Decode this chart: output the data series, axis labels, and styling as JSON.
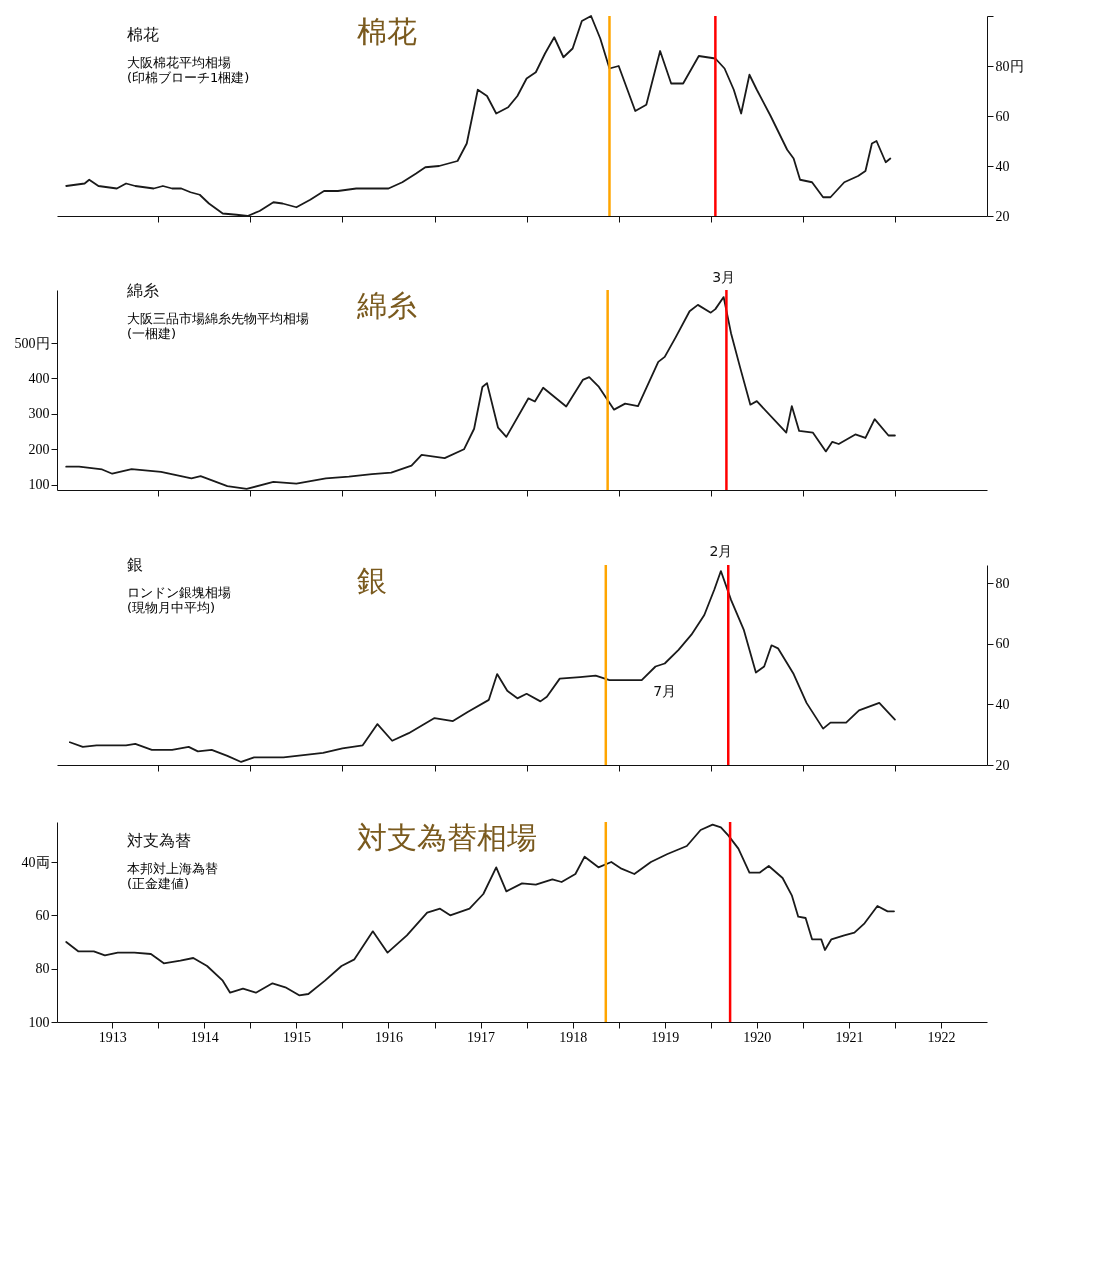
{
  "chart_data": [
    {
      "type": "line",
      "title": "棉花",
      "subtitle": "大阪棉花平均相場\n(印棉ブローチ1梱建)",
      "annotations": [
        "棉花"
      ],
      "xlim": [
        1912.9,
        1923
      ],
      "xticks": [
        {
          "value": 1914,
          "label": null
        },
        {
          "value": 1915,
          "label": null
        },
        {
          "value": 1916,
          "label": null
        },
        {
          "value": 1917,
          "label": null
        },
        {
          "value": 1918,
          "label": null
        },
        {
          "value": 1919,
          "label": null
        },
        {
          "value": 1920,
          "label": null
        },
        {
          "value": 1921,
          "label": null
        },
        {
          "value": 1922,
          "label": null
        }
      ],
      "ylim": [
        20,
        100
      ],
      "yticks": [
        20,
        40,
        60,
        {
          "value": 80,
          "label": "80円"
        },
        {
          "value": 100,
          "label": null
        }
      ],
      "tick_labels": "y",
      "grid": false,
      "marker": "none",
      "line_style": "solid",
      "ref_lines": [
        {
          "axis": "x",
          "value": 1918.9,
          "color": "#ffa500"
        },
        {
          "axis": "x",
          "value": 1920.05,
          "color": "#ff0000"
        }
      ],
      "series": [
        {
          "color": "#1a1a1a",
          "x": [
            1913.0,
            1913.2,
            1913.25,
            1913.35,
            1913.55,
            1913.65,
            1913.75,
            1913.95,
            1914.05,
            1914.15,
            1914.25,
            1914.35,
            1914.45,
            1914.55,
            1914.7,
            1914.85,
            1914.97,
            1915.1,
            1915.25,
            1915.35,
            1915.5,
            1915.65,
            1915.8,
            1915.95,
            1916.15,
            1916.35,
            1916.5,
            1916.65,
            1916.8,
            1916.9,
            1917.05,
            1917.25,
            1917.35,
            1917.47,
            1917.57,
            1917.67,
            1917.8,
            1917.9,
            1918.0,
            1918.1,
            1918.2,
            1918.3,
            1918.4,
            1918.5,
            1918.6,
            1918.7,
            1918.8,
            1918.9,
            1919.0,
            1919.18,
            1919.3,
            1919.45,
            1919.57,
            1919.7,
            1919.87,
            1920.05,
            1920.15,
            1920.25,
            1920.33,
            1920.42,
            1920.5,
            1920.65,
            1920.83,
            1920.9,
            1920.97,
            1921.1,
            1921.22,
            1921.3,
            1921.45,
            1921.6,
            1921.68,
            1921.75,
            1921.8,
            1921.9,
            1921.95
          ],
          "values": [
            32,
            33,
            34.5,
            32,
            31,
            33,
            32,
            31,
            32,
            31,
            31,
            29.5,
            28.5,
            25,
            21,
            20.5,
            20,
            22,
            25.5,
            25,
            23.5,
            26.5,
            30,
            30,
            31,
            31,
            31,
            33.5,
            37,
            39.5,
            40,
            42,
            49,
            70.5,
            68,
            61,
            63.5,
            68,
            75,
            77.5,
            85,
            91.5,
            83.5,
            87,
            98,
            100,
            91,
            79,
            80,
            62,
            64.5,
            86,
            73,
            73,
            84,
            83,
            79,
            70.5,
            61,
            76.5,
            70.5,
            60,
            46.5,
            43,
            34.5,
            33.5,
            27.5,
            27.5,
            33.5,
            36,
            38,
            49,
            50,
            41.5,
            43
          ]
        }
      ]
    },
    {
      "type": "line",
      "title": "綿糸",
      "subtitle": "大阪三品市場綿糸先物平均相場\n(一梱建)",
      "annotations": [
        "綿糸",
        {
          "text": "3月",
          "x": 1920.14,
          "y": 630
        }
      ],
      "xlim": [
        1912.9,
        1923
      ],
      "xticks": [
        {
          "value": 1914,
          "label": null
        },
        {
          "value": 1915,
          "label": null
        },
        {
          "value": 1916,
          "label": null
        },
        {
          "value": 1917,
          "label": null
        },
        {
          "value": 1918,
          "label": null
        },
        {
          "value": 1919,
          "label": null
        },
        {
          "value": 1920,
          "label": null
        },
        {
          "value": 1921,
          "label": null
        },
        {
          "value": 1922,
          "label": null
        }
      ],
      "ylim": [
        85,
        650
      ],
      "yticks": [
        100,
        200,
        300,
        400,
        {
          "value": 500,
          "label": "500円"
        }
      ],
      "tick_labels": "y",
      "grid": false,
      "marker": "none",
      "line_style": "solid",
      "ref_lines": [
        {
          "axis": "x",
          "value": 1918.88,
          "color": "#ffa500"
        },
        {
          "axis": "x",
          "value": 1920.17,
          "color": "#ff0000"
        }
      ],
      "series": [
        {
          "color": "#1a1a1a",
          "x": [
            1913.0,
            1913.14,
            1913.39,
            1913.5,
            1913.71,
            1914.03,
            1914.36,
            1914.46,
            1914.75,
            1914.96,
            1915.25,
            1915.5,
            1915.82,
            1916.07,
            1916.32,
            1916.53,
            1916.75,
            1916.86,
            1917.11,
            1917.32,
            1917.43,
            1917.52,
            1917.57,
            1917.69,
            1917.78,
            1918.02,
            1918.09,
            1918.18,
            1918.43,
            1918.61,
            1918.68,
            1918.78,
            1918.95,
            1919.07,
            1919.21,
            1919.43,
            1919.5,
            1919.62,
            1919.77,
            1919.86,
            1920.0,
            1920.05,
            1920.14,
            1920.22,
            1920.32,
            1920.43,
            1920.5,
            1920.82,
            1920.88,
            1920.96,
            1921.11,
            1921.25,
            1921.32,
            1921.39,
            1921.57,
            1921.68,
            1921.78,
            1921.93,
            1922.0
          ],
          "values": [
            151,
            151,
            143,
            131,
            144,
            136,
            118,
            124,
            96,
            88,
            108,
            103,
            118,
            123,
            130,
            134,
            154,
            184,
            175,
            200,
            258,
            376,
            387,
            261,
            235,
            344,
            335,
            374,
            321,
            396,
            404,
            378,
            312,
            329,
            322,
            447,
            461,
            517,
            590,
            608,
            586,
            596,
            630,
            528,
            430,
            326,
            336,
            247,
            322,
            252,
            247,
            194,
            221,
            215,
            242,
            232,
            285,
            239,
            239
          ]
        }
      ]
    },
    {
      "type": "line",
      "title": "銀",
      "subtitle": "ロンドン銀塊相場\n(現物月中平均)",
      "annotations": [
        "銀",
        {
          "text": "2月",
          "x": 1920.11,
          "y": 84
        },
        {
          "text": "7月",
          "x": 1919.5,
          "y": 53.5
        }
      ],
      "xlim": [
        1912.9,
        1923
      ],
      "xticks": [
        {
          "value": 1914,
          "label": null
        },
        {
          "value": 1915,
          "label": null
        },
        {
          "value": 1916,
          "label": null
        },
        {
          "value": 1917,
          "label": null
        },
        {
          "value": 1918,
          "label": null
        },
        {
          "value": 1919,
          "label": null
        },
        {
          "value": 1920,
          "label": null
        },
        {
          "value": 1921,
          "label": null
        },
        {
          "value": 1922,
          "label": null
        }
      ],
      "ylim": [
        20,
        86
      ],
      "yticks": [
        20,
        40,
        60,
        80
      ],
      "tick_labels": "y",
      "grid": false,
      "marker": "none",
      "line_style": "solid",
      "ref_lines": [
        {
          "axis": "x",
          "value": 1918.86,
          "color": "#ffa500"
        },
        {
          "axis": "x",
          "value": 1920.19,
          "color": "#ff0000"
        }
      ],
      "series": [
        {
          "color": "#1a1a1a",
          "x": [
            1913.04,
            1913.18,
            1913.33,
            1913.65,
            1913.75,
            1913.93,
            1914.15,
            1914.33,
            1914.43,
            1914.58,
            1914.75,
            1914.9,
            1915.04,
            1915.36,
            1915.79,
            1916.0,
            1916.22,
            1916.38,
            1916.54,
            1916.72,
            1917.0,
            1917.2,
            1917.36,
            1917.59,
            1917.68,
            1917.79,
            1917.9,
            1918.0,
            1918.15,
            1918.22,
            1918.36,
            1918.58,
            1918.75,
            1918.9,
            1919.25,
            1919.4,
            1919.5,
            1919.65,
            1919.79,
            1919.93,
            1920.04,
            1920.11,
            1920.22,
            1920.36,
            1920.49,
            1920.58,
            1920.66,
            1920.73,
            1920.9,
            1921.04,
            1921.22,
            1921.3,
            1921.47,
            1921.61,
            1921.83,
            1922.0
          ],
          "values": [
            27.5,
            26,
            26.5,
            26.5,
            27,
            25,
            25,
            26,
            24.5,
            25,
            23,
            21,
            22.5,
            22.5,
            24,
            25.5,
            26.5,
            33.5,
            28,
            30.5,
            35.5,
            34.5,
            37.5,
            41.5,
            50,
            44.5,
            42,
            43.5,
            41,
            42.5,
            48.5,
            49,
            49.5,
            48,
            48,
            52.5,
            53.5,
            58,
            63,
            69.5,
            78,
            84,
            74.5,
            64.5,
            50.5,
            52.5,
            59.5,
            58.5,
            50,
            40.5,
            32,
            34,
            34,
            38,
            40.5,
            35
          ]
        }
      ]
    },
    {
      "type": "line",
      "title": "対支為替",
      "subtitle": "本邦対上海為替\n(正金建値)",
      "annotations": [
        "対支為替相場"
      ],
      "xlim": [
        1912.9,
        1923
      ],
      "xticks": [
        {
          "value": 1913.5,
          "label": "1913"
        },
        {
          "value": 1914,
          "label": null
        },
        {
          "value": 1914.5,
          "label": "1914"
        },
        {
          "value": 1915,
          "label": null
        },
        {
          "value": 1915.5,
          "label": "1915"
        },
        {
          "value": 1916,
          "label": null
        },
        {
          "value": 1916.5,
          "label": "1916"
        },
        {
          "value": 1917,
          "label": null
        },
        {
          "value": 1917.5,
          "label": "1917"
        },
        {
          "value": 1918,
          "label": null
        },
        {
          "value": 1918.5,
          "label": "1918"
        },
        {
          "value": 1919,
          "label": null
        },
        {
          "value": 1919.5,
          "label": "1919"
        },
        {
          "value": 1920,
          "label": null
        },
        {
          "value": 1920.5,
          "label": "1920"
        },
        {
          "value": 1921,
          "label": null
        },
        {
          "value": 1921.5,
          "label": "1921"
        },
        {
          "value": 1922,
          "label": null
        },
        {
          "value": 1922.5,
          "label": "1922"
        }
      ],
      "ylim": [
        100,
        25
      ],
      "yticks": [
        {
          "value": 40,
          "label": "40両"
        },
        60,
        80,
        100
      ],
      "grid": false,
      "marker": "none",
      "line_style": "solid",
      "ref_lines": [
        {
          "axis": "x",
          "value": 1918.86,
          "color": "#ffa500"
        },
        {
          "axis": "x",
          "value": 1920.21,
          "color": "#ff0000"
        }
      ],
      "series": [
        {
          "color": "#1a1a1a",
          "x": [
            1913.0,
            1913.13,
            1913.3,
            1913.42,
            1913.56,
            1913.74,
            1913.92,
            1914.06,
            1914.24,
            1914.38,
            1914.53,
            1914.7,
            1914.78,
            1914.92,
            1915.06,
            1915.24,
            1915.38,
            1915.53,
            1915.63,
            1915.81,
            1915.99,
            1916.13,
            1916.33,
            1916.49,
            1916.7,
            1916.92,
            1917.06,
            1917.17,
            1917.38,
            1917.53,
            1917.67,
            1917.78,
            1917.95,
            1918.1,
            1918.28,
            1918.38,
            1918.53,
            1918.63,
            1918.78,
            1918.92,
            1919.03,
            1919.17,
            1919.35,
            1919.53,
            1919.74,
            1919.89,
            1920.02,
            1920.11,
            1920.19,
            1920.3,
            1920.42,
            1920.53,
            1920.63,
            1920.78,
            1920.88,
            1920.95,
            1921.03,
            1921.1,
            1921.2,
            1921.24,
            1921.31,
            1921.45,
            1921.56,
            1921.67,
            1921.81,
            1921.92,
            1921.99
          ],
          "values": [
            70,
            73.5,
            73.5,
            75,
            74,
            74,
            74.5,
            78,
            77,
            76,
            79,
            84.5,
            89,
            87.5,
            89,
            85.5,
            87,
            90,
            89.5,
            84.5,
            79,
            76.5,
            66,
            74,
            67.5,
            59,
            57.5,
            60,
            57.5,
            52,
            42,
            51,
            48,
            48.5,
            46.5,
            47.5,
            44.5,
            38,
            42,
            40,
            42.5,
            44.5,
            40,
            37,
            34,
            28,
            26,
            27,
            30,
            35,
            44,
            44,
            41.5,
            46,
            52.5,
            60.5,
            61,
            69,
            69,
            73,
            69,
            67.5,
            66.5,
            63,
            56.5,
            58.5,
            58.5
          ]
        }
      ]
    }
  ]
}
